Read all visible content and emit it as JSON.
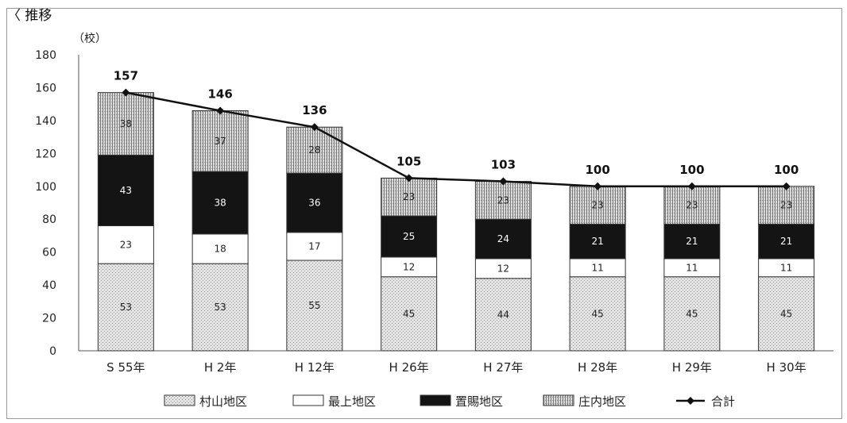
{
  "heading": "〈 推移",
  "chart_data": {
    "type": "bar",
    "stacked": true,
    "yunit": "（校）",
    "ylim": [
      0,
      180
    ],
    "yticks": [
      0,
      20,
      40,
      60,
      80,
      100,
      120,
      140,
      160,
      180
    ],
    "categories": [
      "S 55年",
      "H 2年",
      "H 12年",
      "H 26年",
      "H 27年",
      "H 28年",
      "H 29年",
      "H 30年"
    ],
    "series": [
      {
        "name": "村山地区",
        "values": [
          53,
          53,
          55,
          45,
          44,
          45,
          45,
          45
        ],
        "fill": "pat-dots",
        "text": "#222222"
      },
      {
        "name": "最上地区",
        "values": [
          23,
          18,
          17,
          12,
          12,
          11,
          11,
          11
        ],
        "fill": "#ffffff",
        "text": "#222222"
      },
      {
        "name": "置賜地区",
        "values": [
          43,
          38,
          36,
          25,
          24,
          21,
          21,
          21
        ],
        "fill": "#141414",
        "text": "#ffffff"
      },
      {
        "name": "庄内地区",
        "values": [
          38,
          37,
          28,
          23,
          23,
          23,
          23,
          23
        ],
        "fill": "pat-vstripe",
        "text": "#222222"
      }
    ],
    "total": {
      "name": "合計",
      "values": [
        157,
        146,
        136,
        105,
        103,
        100,
        100,
        100
      ]
    },
    "grid": false,
    "legend_position": "bottom"
  }
}
